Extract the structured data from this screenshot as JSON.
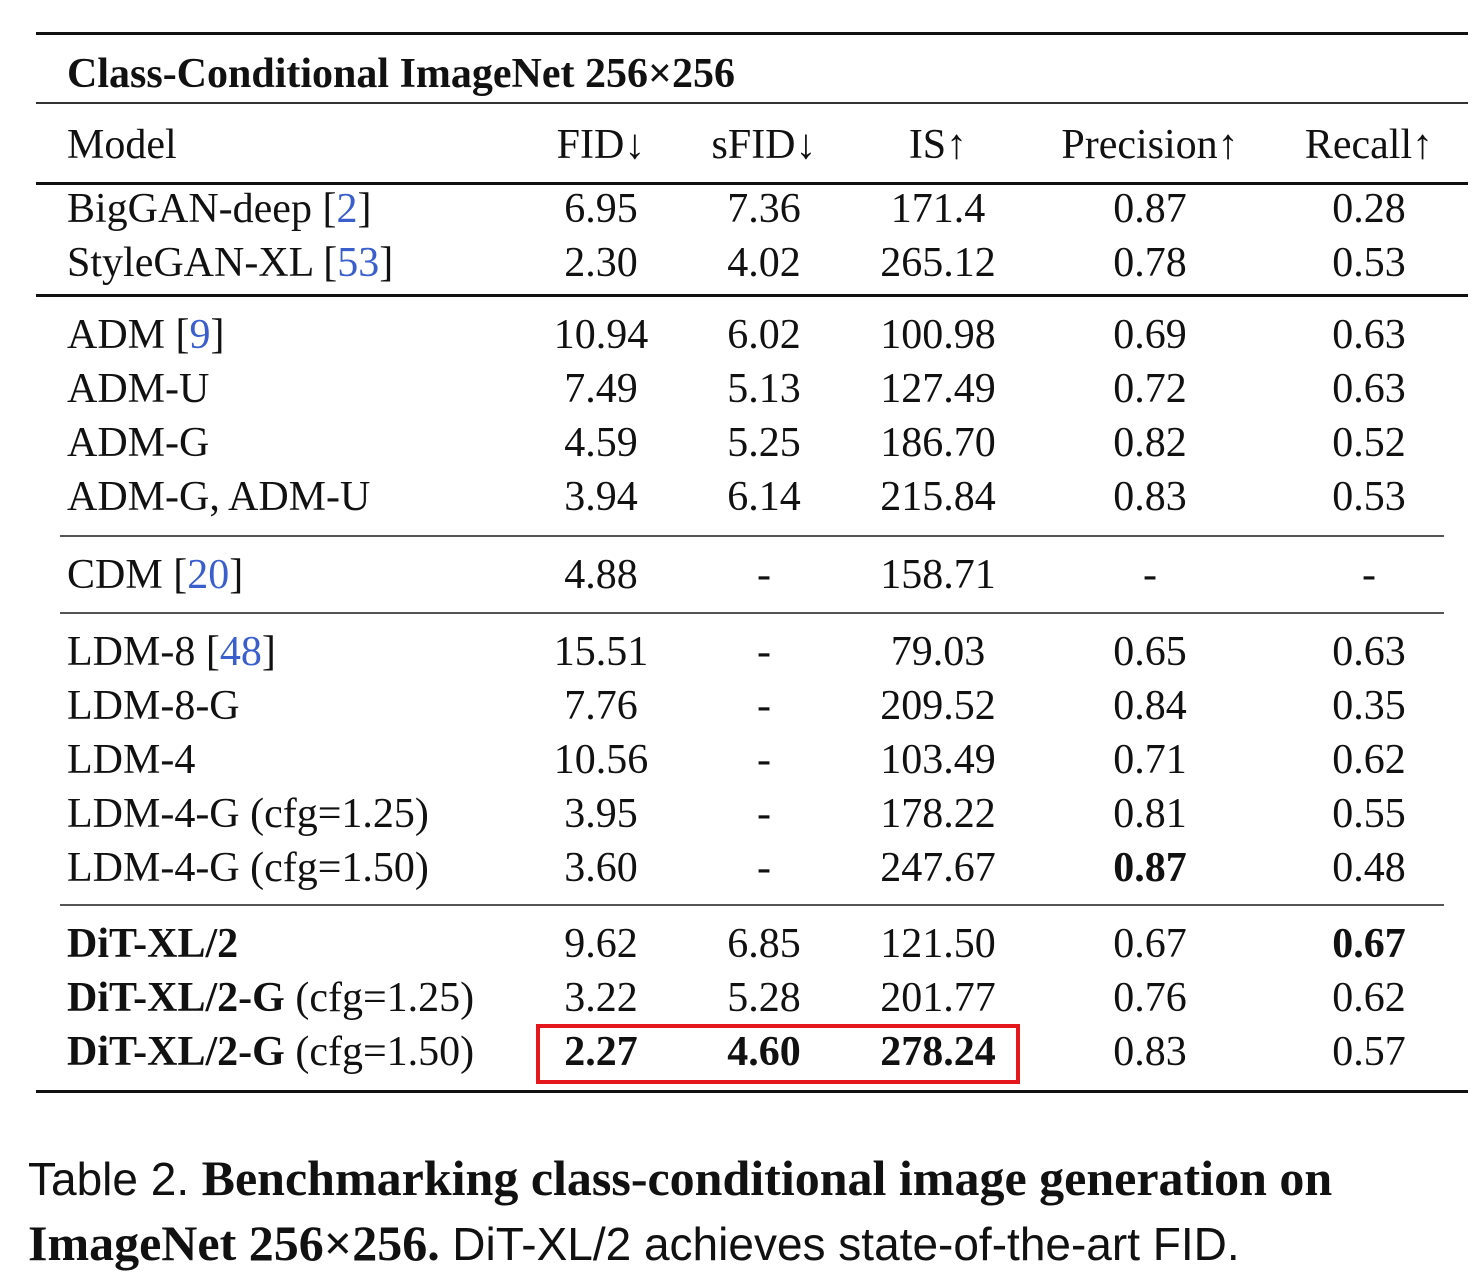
{
  "table": {
    "title": "Class-Conditional ImageNet 256×256",
    "headers": [
      "Model",
      "FID↓",
      "sFID↓",
      "IS↑",
      "Precision↑",
      "Recall↑"
    ],
    "groups": [
      [
        {
          "model": "BigGAN-deep ",
          "cite": "2",
          "cells": [
            "6.95",
            "7.36",
            "171.4",
            "0.87",
            "0.28"
          ]
        },
        {
          "model": "StyleGAN-XL ",
          "cite": "53",
          "cells": [
            "2.30",
            "4.02",
            "265.12",
            "0.78",
            "0.53"
          ]
        }
      ],
      [
        {
          "model": "ADM ",
          "cite": "9",
          "cells": [
            "10.94",
            "6.02",
            "100.98",
            "0.69",
            "0.63"
          ]
        },
        {
          "model": "ADM-U",
          "cells": [
            "7.49",
            "5.13",
            "127.49",
            "0.72",
            "0.63"
          ]
        },
        {
          "model": "ADM-G",
          "cells": [
            "4.59",
            "5.25",
            "186.70",
            "0.82",
            "0.52"
          ]
        },
        {
          "model": "ADM-G, ADM-U",
          "cells": [
            "3.94",
            "6.14",
            "215.84",
            "0.83",
            "0.53"
          ]
        }
      ],
      [
        {
          "model": "CDM ",
          "cite": "20",
          "cells": [
            "4.88",
            "-",
            "158.71",
            "-",
            "-"
          ]
        }
      ],
      [
        {
          "model": "LDM-8 ",
          "cite": "48",
          "cells": [
            "15.51",
            "-",
            "79.03",
            "0.65",
            "0.63"
          ]
        },
        {
          "model": "LDM-8-G",
          "cells": [
            "7.76",
            "-",
            "209.52",
            "0.84",
            "0.35"
          ]
        },
        {
          "model": "LDM-4",
          "cells": [
            "10.56",
            "-",
            "103.49",
            "0.71",
            "0.62"
          ]
        },
        {
          "model": "LDM-4-G (cfg=1.25)",
          "cells": [
            "3.95",
            "-",
            "178.22",
            "0.81",
            "0.55"
          ]
        },
        {
          "model": "LDM-4-G (cfg=1.50)",
          "cells": [
            "3.60",
            "-",
            "247.67",
            "0.87",
            "0.48"
          ]
        }
      ],
      [
        {
          "model": "DiT-XL/2",
          "cells": [
            "9.62",
            "6.85",
            "121.50",
            "0.67",
            "0.67"
          ]
        },
        {
          "model": "DiT-XL/2-G",
          "suffix": " (cfg=1.25)",
          "cells": [
            "3.22",
            "5.28",
            "201.77",
            "0.76",
            "0.62"
          ]
        },
        {
          "model": "DiT-XL/2-G",
          "suffix": " (cfg=1.50)",
          "cells": [
            "2.27",
            "4.60",
            "278.24",
            "0.83",
            "0.57"
          ]
        }
      ]
    ],
    "highlight_color": "#e4181c",
    "citation_color": "#3a5fcd"
  },
  "caption": {
    "label": "Table 2.",
    "bold_text": "Benchmarking class-conditional image generation on ImageNet 256×256.",
    "text": "DiT-XL/2 achieves state-of-the-art FID."
  }
}
